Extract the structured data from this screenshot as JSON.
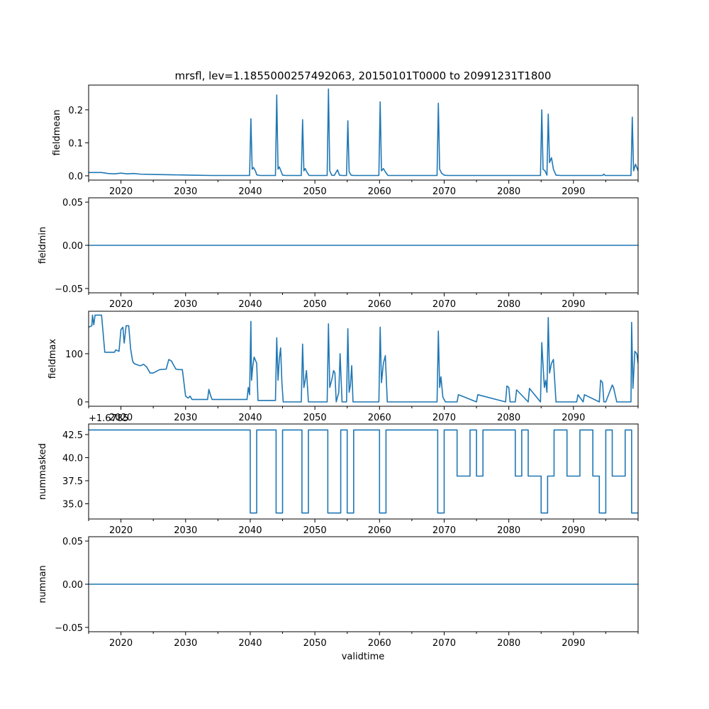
{
  "chart_data": {
    "type": "line",
    "title": "mrsfl, lev=1.1855000257492063, 20150101T0000 to 20991231T1800",
    "xlabel": "validtime",
    "xlim": [
      2015,
      2100
    ],
    "xticks": [
      2020,
      2030,
      2040,
      2050,
      2060,
      2070,
      2080,
      2090
    ],
    "xtick_labels": [
      "2020",
      "2030",
      "2040",
      "2050",
      "2060",
      "2070",
      "2080",
      "2090"
    ],
    "line_color": "#1f77b4",
    "panels": [
      {
        "ylabel": "fieldmean",
        "ylim": [
          -0.013,
          0.275
        ],
        "yticks": [
          0.0,
          0.1,
          0.2
        ],
        "ytick_labels": [
          "0.0",
          "0.1",
          "0.2"
        ],
        "x": [
          2015,
          2017,
          2018,
          2019,
          2020,
          2021,
          2022,
          2023,
          2025,
          2028,
          2031,
          2034,
          2039.9,
          2040.1,
          2040.3,
          2040.5,
          2040.8,
          2041,
          2041.5,
          2043.9,
          2044.1,
          2044.3,
          2044.5,
          2044.8,
          2045,
          2045.5,
          2047.9,
          2048.1,
          2048.3,
          2048.5,
          2048.8,
          2049.1,
          2051.9,
          2052.1,
          2052.3,
          2052.6,
          2053,
          2053.5,
          2053.8,
          2054.2,
          2054.9,
          2055.1,
          2055.3,
          2055.6,
          2056,
          2059.9,
          2060.1,
          2060.3,
          2060.6,
          2060.9,
          2061.3,
          2068.9,
          2069.1,
          2069.3,
          2069.6,
          2070,
          2070.5,
          2084.9,
          2085.1,
          2085.3,
          2085.6,
          2085.9,
          2086.1,
          2086.3,
          2086.6,
          2086.9,
          2087.3,
          2088,
          2094.5,
          2094.7,
          2094.9,
          2098.9,
          2099.1,
          2099.3,
          2099.6,
          2100
        ],
        "y": [
          0.01,
          0.01,
          0.007,
          0.006,
          0.008,
          0.006,
          0.007,
          0.005,
          0.004,
          0.003,
          0.002,
          0.001,
          0.001,
          0.173,
          0.02,
          0.025,
          0.015,
          0.003,
          0.001,
          0.001,
          0.245,
          0.02,
          0.027,
          0.012,
          0.002,
          0.001,
          0.001,
          0.17,
          0.015,
          0.022,
          0.01,
          0.001,
          0.001,
          0.263,
          0.015,
          0.002,
          0.001,
          0.018,
          0.002,
          0.001,
          0.001,
          0.167,
          0.012,
          0.002,
          0.001,
          0.001,
          0.224,
          0.015,
          0.022,
          0.012,
          0.001,
          0.001,
          0.22,
          0.02,
          0.008,
          0.002,
          0.001,
          0.001,
          0.2,
          0.02,
          0.015,
          0.002,
          0.187,
          0.04,
          0.055,
          0.02,
          0.002,
          0.001,
          0.001,
          0.005,
          0.001,
          0.001,
          0.178,
          0.015,
          0.035,
          0.015
        ]
      },
      {
        "ylabel": "fieldmin",
        "ylim": [
          -0.055,
          0.055
        ],
        "yticks": [
          -0.05,
          0.0,
          0.05
        ],
        "ytick_labels": [
          "−0.05",
          "0.00",
          "0.05"
        ],
        "x": [
          2015,
          2100
        ],
        "y": [
          0,
          0
        ]
      },
      {
        "ylabel": "fieldmax",
        "ylim": [
          -9,
          188
        ],
        "yticks": [
          0,
          100
        ],
        "ytick_labels": [
          "0",
          "100"
        ],
        "x": [
          2015,
          2015.5,
          2015.6,
          2015.8,
          2016,
          2017,
          2017.5,
          2019,
          2019.2,
          2019.7,
          2020,
          2020.3,
          2020.5,
          2020.8,
          2021.2,
          2021.5,
          2021.8,
          2022,
          2022.5,
          2023,
          2023.5,
          2024,
          2024.5,
          2025,
          2026,
          2027,
          2027.4,
          2027.8,
          2028,
          2028.5,
          2029,
          2029.5,
          2030,
          2030.4,
          2030.7,
          2031,
          2033.4,
          2033.6,
          2033.9,
          2034.1,
          2039.5,
          2039.7,
          2039.9,
          2040.1,
          2040.2,
          2040.4,
          2040.6,
          2041,
          2041.2,
          2043.9,
          2044.1,
          2044.3,
          2044.5,
          2044.7,
          2044.9,
          2045.1,
          2047.9,
          2048.1,
          2048.3,
          2048.5,
          2048.7,
          2049,
          2051.9,
          2052.1,
          2052.3,
          2052.6,
          2052.9,
          2053.1,
          2053.3,
          2053.7,
          2053.9,
          2054.2,
          2054.9,
          2055.1,
          2055.3,
          2055.5,
          2055.7,
          2055.9,
          2059.9,
          2060.1,
          2060.3,
          2060.6,
          2060.9,
          2061.2,
          2068.9,
          2069.1,
          2069.3,
          2069.5,
          2069.8,
          2070.2,
          2072,
          2072.2,
          2075,
          2075.2,
          2079.5,
          2079.7,
          2080,
          2080.2,
          2081,
          2081.2,
          2083,
          2083.2,
          2084.9,
          2085.1,
          2085.3,
          2085.5,
          2085.7,
          2085.9,
          2086.1,
          2086.3,
          2086.6,
          2086.9,
          2087.3,
          2090.5,
          2090.7,
          2091.5,
          2091.7,
          2094,
          2094.2,
          2094.5,
          2094.7,
          2095,
          2096,
          2096.2,
          2096.7,
          2098.9,
          2099,
          2099.2,
          2099.5,
          2099.8,
          2100
        ],
        "y": [
          155,
          158,
          180,
          160,
          180,
          180,
          103,
          103,
          108,
          105,
          150,
          155,
          122,
          158,
          158,
          110,
          85,
          80,
          77,
          75,
          78,
          72,
          60,
          60,
          67,
          68,
          88,
          85,
          80,
          68,
          67,
          67,
          12,
          8,
          12,
          5,
          5,
          26,
          12,
          5,
          5,
          30,
          15,
          167,
          45,
          75,
          93,
          80,
          3,
          3,
          133,
          45,
          90,
          112,
          40,
          0,
          0,
          120,
          30,
          45,
          65,
          0,
          0,
          162,
          30,
          45,
          65,
          60,
          0,
          20,
          100,
          0,
          0,
          152,
          20,
          35,
          75,
          0,
          0,
          155,
          40,
          80,
          96,
          0,
          0,
          147,
          30,
          52,
          10,
          0,
          0,
          15,
          0,
          15,
          0,
          33,
          30,
          0,
          0,
          25,
          0,
          28,
          0,
          123,
          75,
          30,
          45,
          20,
          175,
          60,
          80,
          88,
          0,
          0,
          15,
          0,
          15,
          0,
          45,
          40,
          0,
          0,
          35,
          30,
          0,
          0,
          165,
          28,
          105,
          100,
          80
        ]
      },
      {
        "ylabel": "nummasked",
        "offset_label": "+1.6785",
        "ylim": [
          33.35,
          43.65
        ],
        "yticks": [
          35.0,
          37.5,
          40.0,
          42.5
        ],
        "ytick_labels": [
          "35.0",
          "37.5",
          "40.0",
          "42.5"
        ],
        "x": [
          2015,
          2040,
          2040,
          2041,
          2041,
          2044,
          2044,
          2045,
          2045,
          2048,
          2048,
          2049,
          2049,
          2052,
          2052,
          2054,
          2054,
          2055,
          2055,
          2056,
          2056,
          2060,
          2060,
          2061,
          2061,
          2069,
          2069,
          2070,
          2070,
          2072,
          2072,
          2074,
          2074,
          2075,
          2075,
          2076,
          2076,
          2081,
          2081,
          2082,
          2082,
          2083,
          2083,
          2085,
          2085,
          2086,
          2086,
          2087,
          2087,
          2089,
          2089,
          2091,
          2091,
          2093,
          2093,
          2094,
          2094,
          2095,
          2095,
          2096,
          2096,
          2098,
          2098,
          2099,
          2099,
          2100
        ],
        "y": [
          43,
          43,
          34,
          34,
          43,
          43,
          34,
          34,
          43,
          43,
          34,
          34,
          43,
          43,
          34,
          34,
          43,
          43,
          34,
          34,
          43,
          43,
          34,
          34,
          43,
          43,
          34,
          34,
          43,
          43,
          38,
          38,
          43,
          43,
          38,
          38,
          43,
          43,
          38,
          38,
          43,
          43,
          38,
          38,
          34,
          34,
          38,
          38,
          43,
          43,
          38,
          38,
          43,
          43,
          38,
          38,
          34,
          34,
          43,
          43,
          38,
          38,
          43,
          43,
          34,
          34
        ]
      },
      {
        "ylabel": "numnan",
        "ylim": [
          -0.055,
          0.055
        ],
        "yticks": [
          -0.05,
          0.0,
          0.05
        ],
        "ytick_labels": [
          "−0.05",
          "0.00",
          "0.05"
        ],
        "x": [
          2015,
          2100
        ],
        "y": [
          0,
          0
        ]
      }
    ]
  }
}
